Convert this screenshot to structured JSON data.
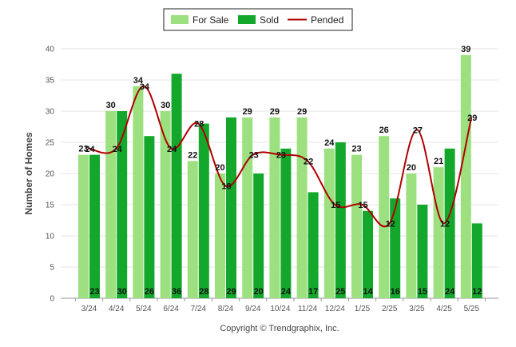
{
  "chart_data": {
    "type": "bar",
    "categories": [
      "3/24",
      "4/24",
      "5/24",
      "6/24",
      "7/24",
      "8/24",
      "9/24",
      "10/24",
      "11/24",
      "12/24",
      "1/25",
      "2/25",
      "3/25",
      "4/25",
      "5/25"
    ],
    "series": [
      {
        "name": "For Sale",
        "type": "bar",
        "color": "#9de07f",
        "values": [
          23,
          30,
          34,
          30,
          22,
          20,
          29,
          29,
          29,
          24,
          23,
          26,
          20,
          21,
          39
        ]
      },
      {
        "name": "Sold",
        "type": "bar",
        "color": "#13a82b",
        "values": [
          23,
          30,
          26,
          36,
          28,
          29,
          20,
          24,
          17,
          25,
          14,
          16,
          15,
          24,
          12
        ]
      },
      {
        "name": "Pended",
        "type": "line",
        "color": "#b00000",
        "values": [
          24,
          24,
          34,
          24,
          28,
          18,
          23,
          23,
          22,
          15,
          15,
          12,
          27,
          12,
          29
        ]
      }
    ],
    "title": "",
    "xlabel": "",
    "ylabel": "Number of Homes",
    "ylim": [
      0,
      40
    ],
    "yticks": [
      0,
      5,
      10,
      15,
      20,
      25,
      30,
      35,
      40
    ],
    "grid": true,
    "legend_position": "top-center"
  },
  "legend": {
    "items": [
      {
        "label": "For Sale",
        "color": "#9de07f",
        "kind": "bar"
      },
      {
        "label": "Sold",
        "color": "#13a82b",
        "kind": "bar"
      },
      {
        "label": "Pended",
        "color": "#b00000",
        "kind": "line"
      }
    ]
  },
  "footer": {
    "copyright": "Copyright © Trendgraphix, Inc."
  }
}
